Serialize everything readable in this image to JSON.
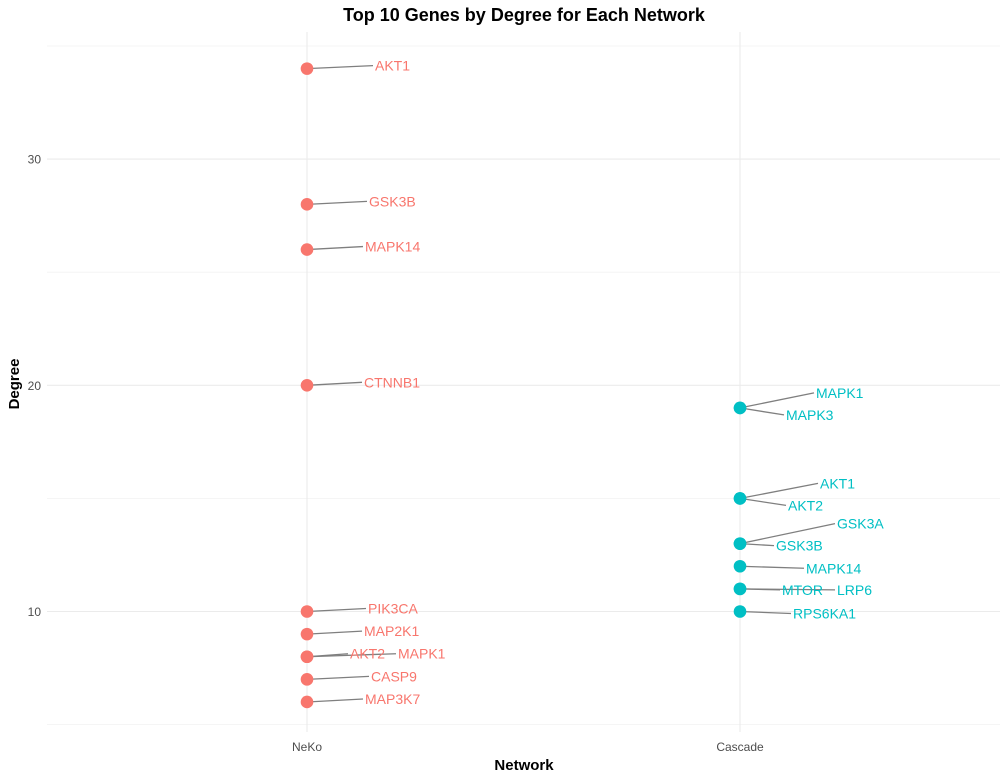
{
  "chart_data": {
    "type": "scatter",
    "title": "Top 10 Genes by Degree for Each Network",
    "xlabel": "Network",
    "ylabel": "Degree",
    "categories": [
      "NeKo",
      "Cascade"
    ],
    "ylim": [
      5,
      35
    ],
    "y_ticks": [
      10,
      20,
      30
    ],
    "grid": true,
    "legend": "none",
    "series": [
      {
        "category": "NeKo",
        "color": "#F8766D",
        "points": [
          {
            "gene": "AKT1",
            "y": 34
          },
          {
            "gene": "GSK3B",
            "y": 28
          },
          {
            "gene": "MAPK14",
            "y": 26
          },
          {
            "gene": "CTNNB1",
            "y": 20
          },
          {
            "gene": "PIK3CA",
            "y": 10
          },
          {
            "gene": "MAP2K1",
            "y": 9
          },
          {
            "gene": "AKT2",
            "y": 8
          },
          {
            "gene": "MAPK1",
            "y": 8
          },
          {
            "gene": "CASP9",
            "y": 7
          },
          {
            "gene": "MAP3K7",
            "y": 6
          }
        ]
      },
      {
        "category": "Cascade",
        "color": "#00BFC4",
        "points": [
          {
            "gene": "MAPK1",
            "y": 19
          },
          {
            "gene": "MAPK3",
            "y": 19
          },
          {
            "gene": "AKT1",
            "y": 15
          },
          {
            "gene": "AKT2",
            "y": 15
          },
          {
            "gene": "GSK3A",
            "y": 13
          },
          {
            "gene": "GSK3B",
            "y": 13
          },
          {
            "gene": "MAPK14",
            "y": 12
          },
          {
            "gene": "MTOR",
            "y": 11
          },
          {
            "gene": "LRP6",
            "y": 11
          },
          {
            "gene": "RPS6KA1",
            "y": 10
          }
        ]
      }
    ]
  }
}
